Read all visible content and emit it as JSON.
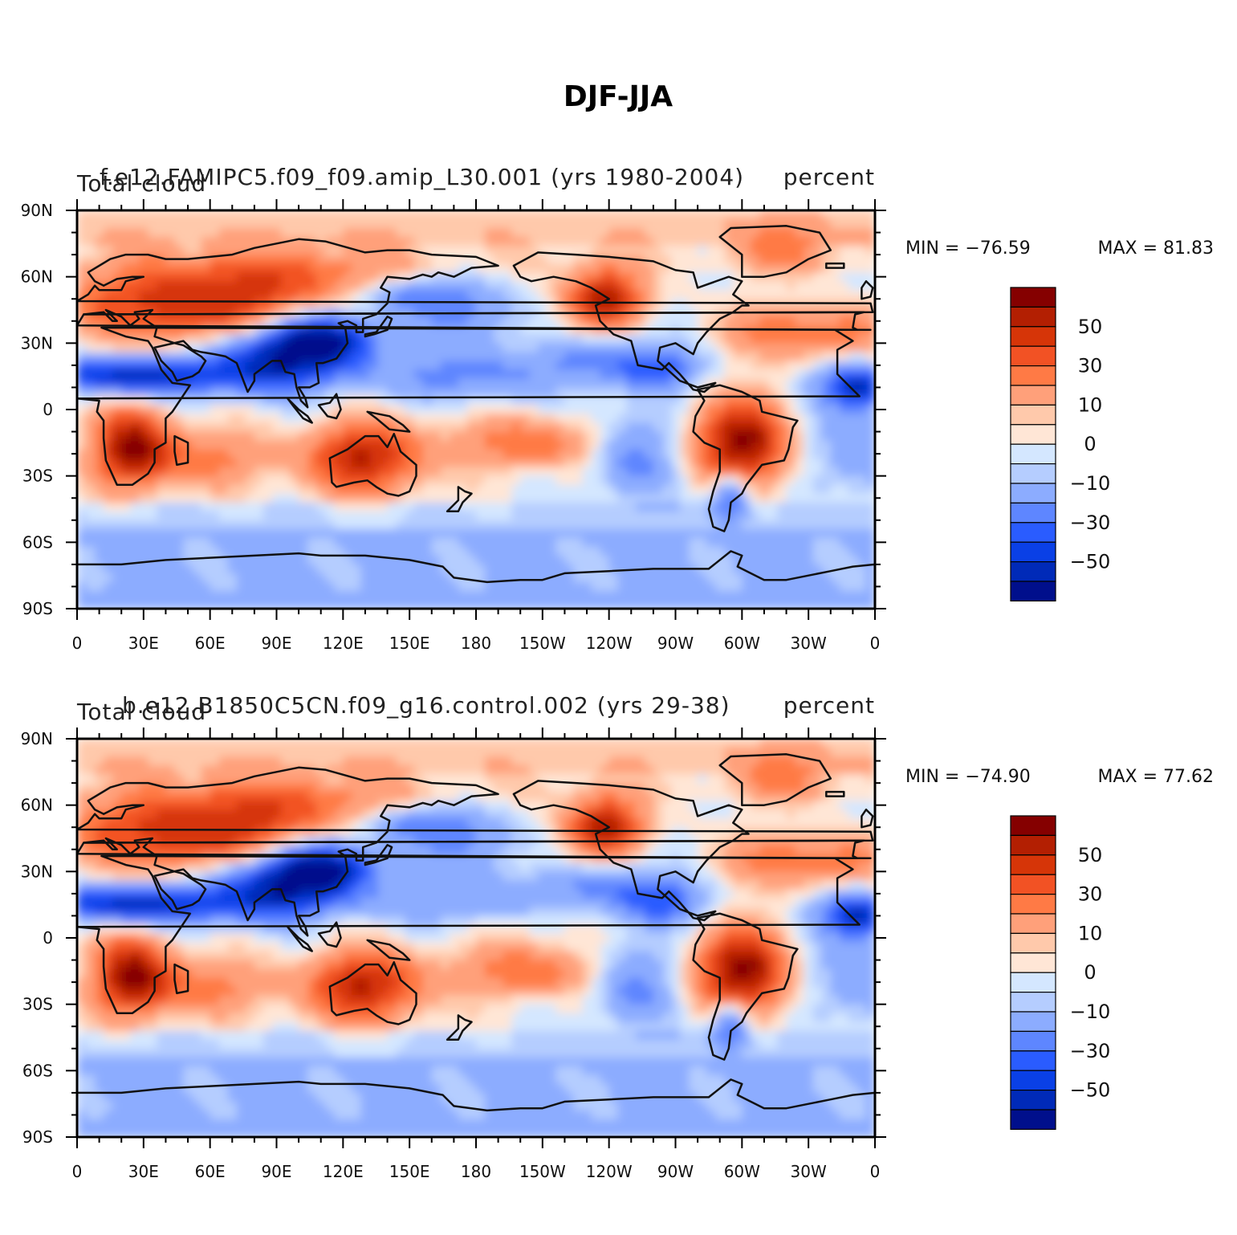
{
  "figure_title": "DJF-JJA",
  "chart_data": [
    {
      "type": "heatmap",
      "title": "f.e12.FAMIPC5.f09_f09.amip_L30.001 (yrs 1980-2004)",
      "left_string": "Total cloud",
      "units": "percent",
      "x_ticks": [
        "0",
        "30E",
        "60E",
        "90E",
        "120E",
        "150E",
        "180",
        "150W",
        "120W",
        "90W",
        "60W",
        "30W",
        "0"
      ],
      "y_ticks": [
        "90N",
        "60N",
        "30N",
        "0",
        "30S",
        "60S",
        "90S"
      ],
      "xlim": [
        0,
        360
      ],
      "ylim": [
        -90,
        90
      ],
      "min_label": "MIN = −76.59",
      "max_label": "MAX =   81.83",
      "min": -76.59,
      "max": 81.83,
      "colorbar_levels": [
        -60,
        -50,
        -40,
        -30,
        -20,
        -10,
        -5,
        0,
        5,
        10,
        20,
        30,
        40,
        50,
        60
      ],
      "colorbar_labels": [
        "50",
        "30",
        "10",
        "0",
        "−10",
        "−30",
        "−50"
      ],
      "colorbar_colors": [
        "#850000",
        "#b31f02",
        "#d63508",
        "#f25224",
        "#ff7a45",
        "#ffa07a",
        "#ffc9ab",
        "#ffe6d6",
        "#d4e7ff",
        "#b5cdff",
        "#8cacff",
        "#5e86ff",
        "#2a5cff",
        "#0a40e6",
        "#002ab8",
        "#000f8c"
      ]
    },
    {
      "type": "heatmap",
      "title": "b.e12.B1850C5CN.f09_g16.control.002 (yrs 29-38)",
      "left_string": "Total cloud",
      "units": "percent",
      "x_ticks": [
        "0",
        "30E",
        "60E",
        "90E",
        "120E",
        "150E",
        "180",
        "150W",
        "120W",
        "90W",
        "60W",
        "30W",
        "0"
      ],
      "y_ticks": [
        "90N",
        "60N",
        "30N",
        "0",
        "30S",
        "60S",
        "90S"
      ],
      "xlim": [
        0,
        360
      ],
      "ylim": [
        -90,
        90
      ],
      "min_label": "MIN = −74.90",
      "max_label": "MAX =   77.62",
      "min": -74.9,
      "max": 77.62,
      "colorbar_levels": [
        -60,
        -50,
        -40,
        -30,
        -20,
        -10,
        -5,
        0,
        5,
        10,
        20,
        30,
        40,
        50,
        60
      ],
      "colorbar_labels": [
        "50",
        "30",
        "10",
        "0",
        "−10",
        "−30",
        "−50"
      ],
      "colorbar_colors": [
        "#850000",
        "#b31f02",
        "#d63508",
        "#f25224",
        "#ff7a45",
        "#ffa07a",
        "#ffc9ab",
        "#ffe6d6",
        "#d4e7ff",
        "#b5cdff",
        "#8cacff",
        "#5e86ff",
        "#2a5cff",
        "#0a40e6",
        "#002ab8",
        "#000f8c"
      ]
    }
  ]
}
